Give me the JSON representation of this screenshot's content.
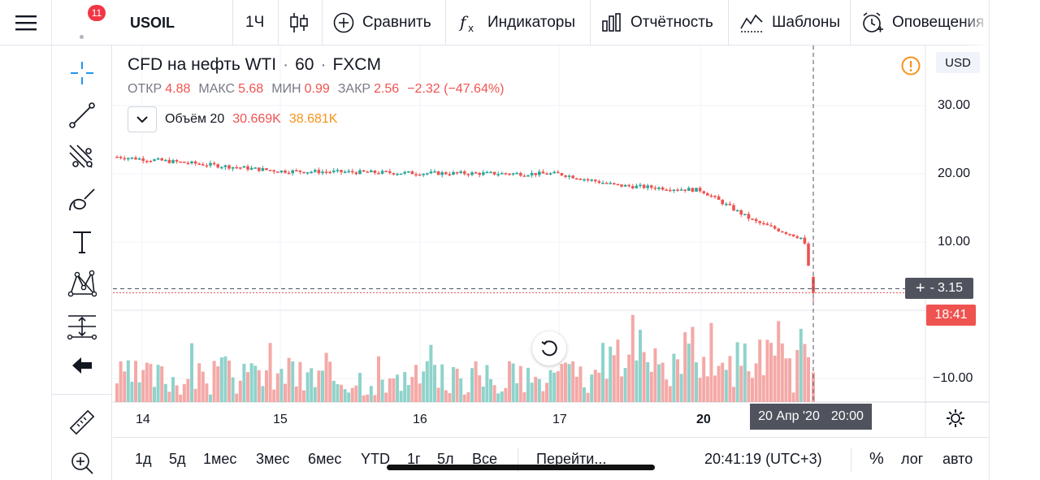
{
  "toolbar": {
    "symbol": "USOIL",
    "interval": "1Ч",
    "compare": "Сравнить",
    "indicators": "Индикаторы",
    "reports": "Отчётность",
    "templates": "Шаблоны",
    "alerts": "Оповещения",
    "notifications_badge": "11"
  },
  "legend": {
    "title": "CFD на нефть WTI",
    "interval": "60",
    "exchange": "FXCM",
    "open_label": "ОТКР",
    "open": "4.88",
    "high_label": "МАКС",
    "high": "5.68",
    "low_label": "МИН",
    "low": "0.99",
    "close_label": "ЗАКР",
    "close": "2.56",
    "change": "−2.32 (−47.64%)",
    "volume_label": "Объём 20",
    "volume_value": "30.669K",
    "volume_ma": "38.681K"
  },
  "price_axis": {
    "currency": "USD",
    "ticks": [
      "30.00",
      "20.00",
      "10.00",
      "−10.00"
    ],
    "crosshair_price": "3.15",
    "countdown": "18:41"
  },
  "time_axis": {
    "ticks": [
      "14",
      "15",
      "16",
      "17",
      "20"
    ],
    "crosshair_date": "20 Апр '20",
    "crosshair_time": "20:00"
  },
  "bottom": {
    "ranges": [
      "1д",
      "5д",
      "1мес",
      "3мес",
      "6мес",
      "YTD",
      "1г",
      "5л",
      "Все"
    ],
    "goto": "Перейти...",
    "clock": "20:41:19 (UTC+3)",
    "percent": "%",
    "log": "лог",
    "auto": "авто"
  },
  "colors": {
    "up": "#26a69a",
    "down": "#ef5350",
    "vol_up": "#8fd3cb",
    "vol_down": "#f4a9a7",
    "accent": "#2196f3",
    "warning": "#f7931a"
  },
  "chart_data": {
    "type": "candlestick",
    "symbol": "USOIL",
    "y_ticks": [
      30,
      20,
      10,
      -10
    ],
    "x_ticks": [
      "14",
      "15",
      "16",
      "17",
      "20"
    ],
    "crosshair_price": 3.15,
    "last": {
      "open": 4.88,
      "high": 5.68,
      "low": 0.99,
      "close": 2.56
    },
    "close_path": [
      {
        "t": "14",
        "close": 22.5
      },
      {
        "t": "15",
        "close": 20.4
      },
      {
        "t": "16",
        "close": 20.1
      },
      {
        "t": "17",
        "close": 20.0
      },
      {
        "t": "17 late",
        "close": 18.3
      },
      {
        "t": "20",
        "close": 17.6
      },
      {
        "t": "20 12:00",
        "close": 13.0
      },
      {
        "t": "20 17:00",
        "close": 10.5
      },
      {
        "t": "20 20:00",
        "close": 2.56
      }
    ]
  }
}
